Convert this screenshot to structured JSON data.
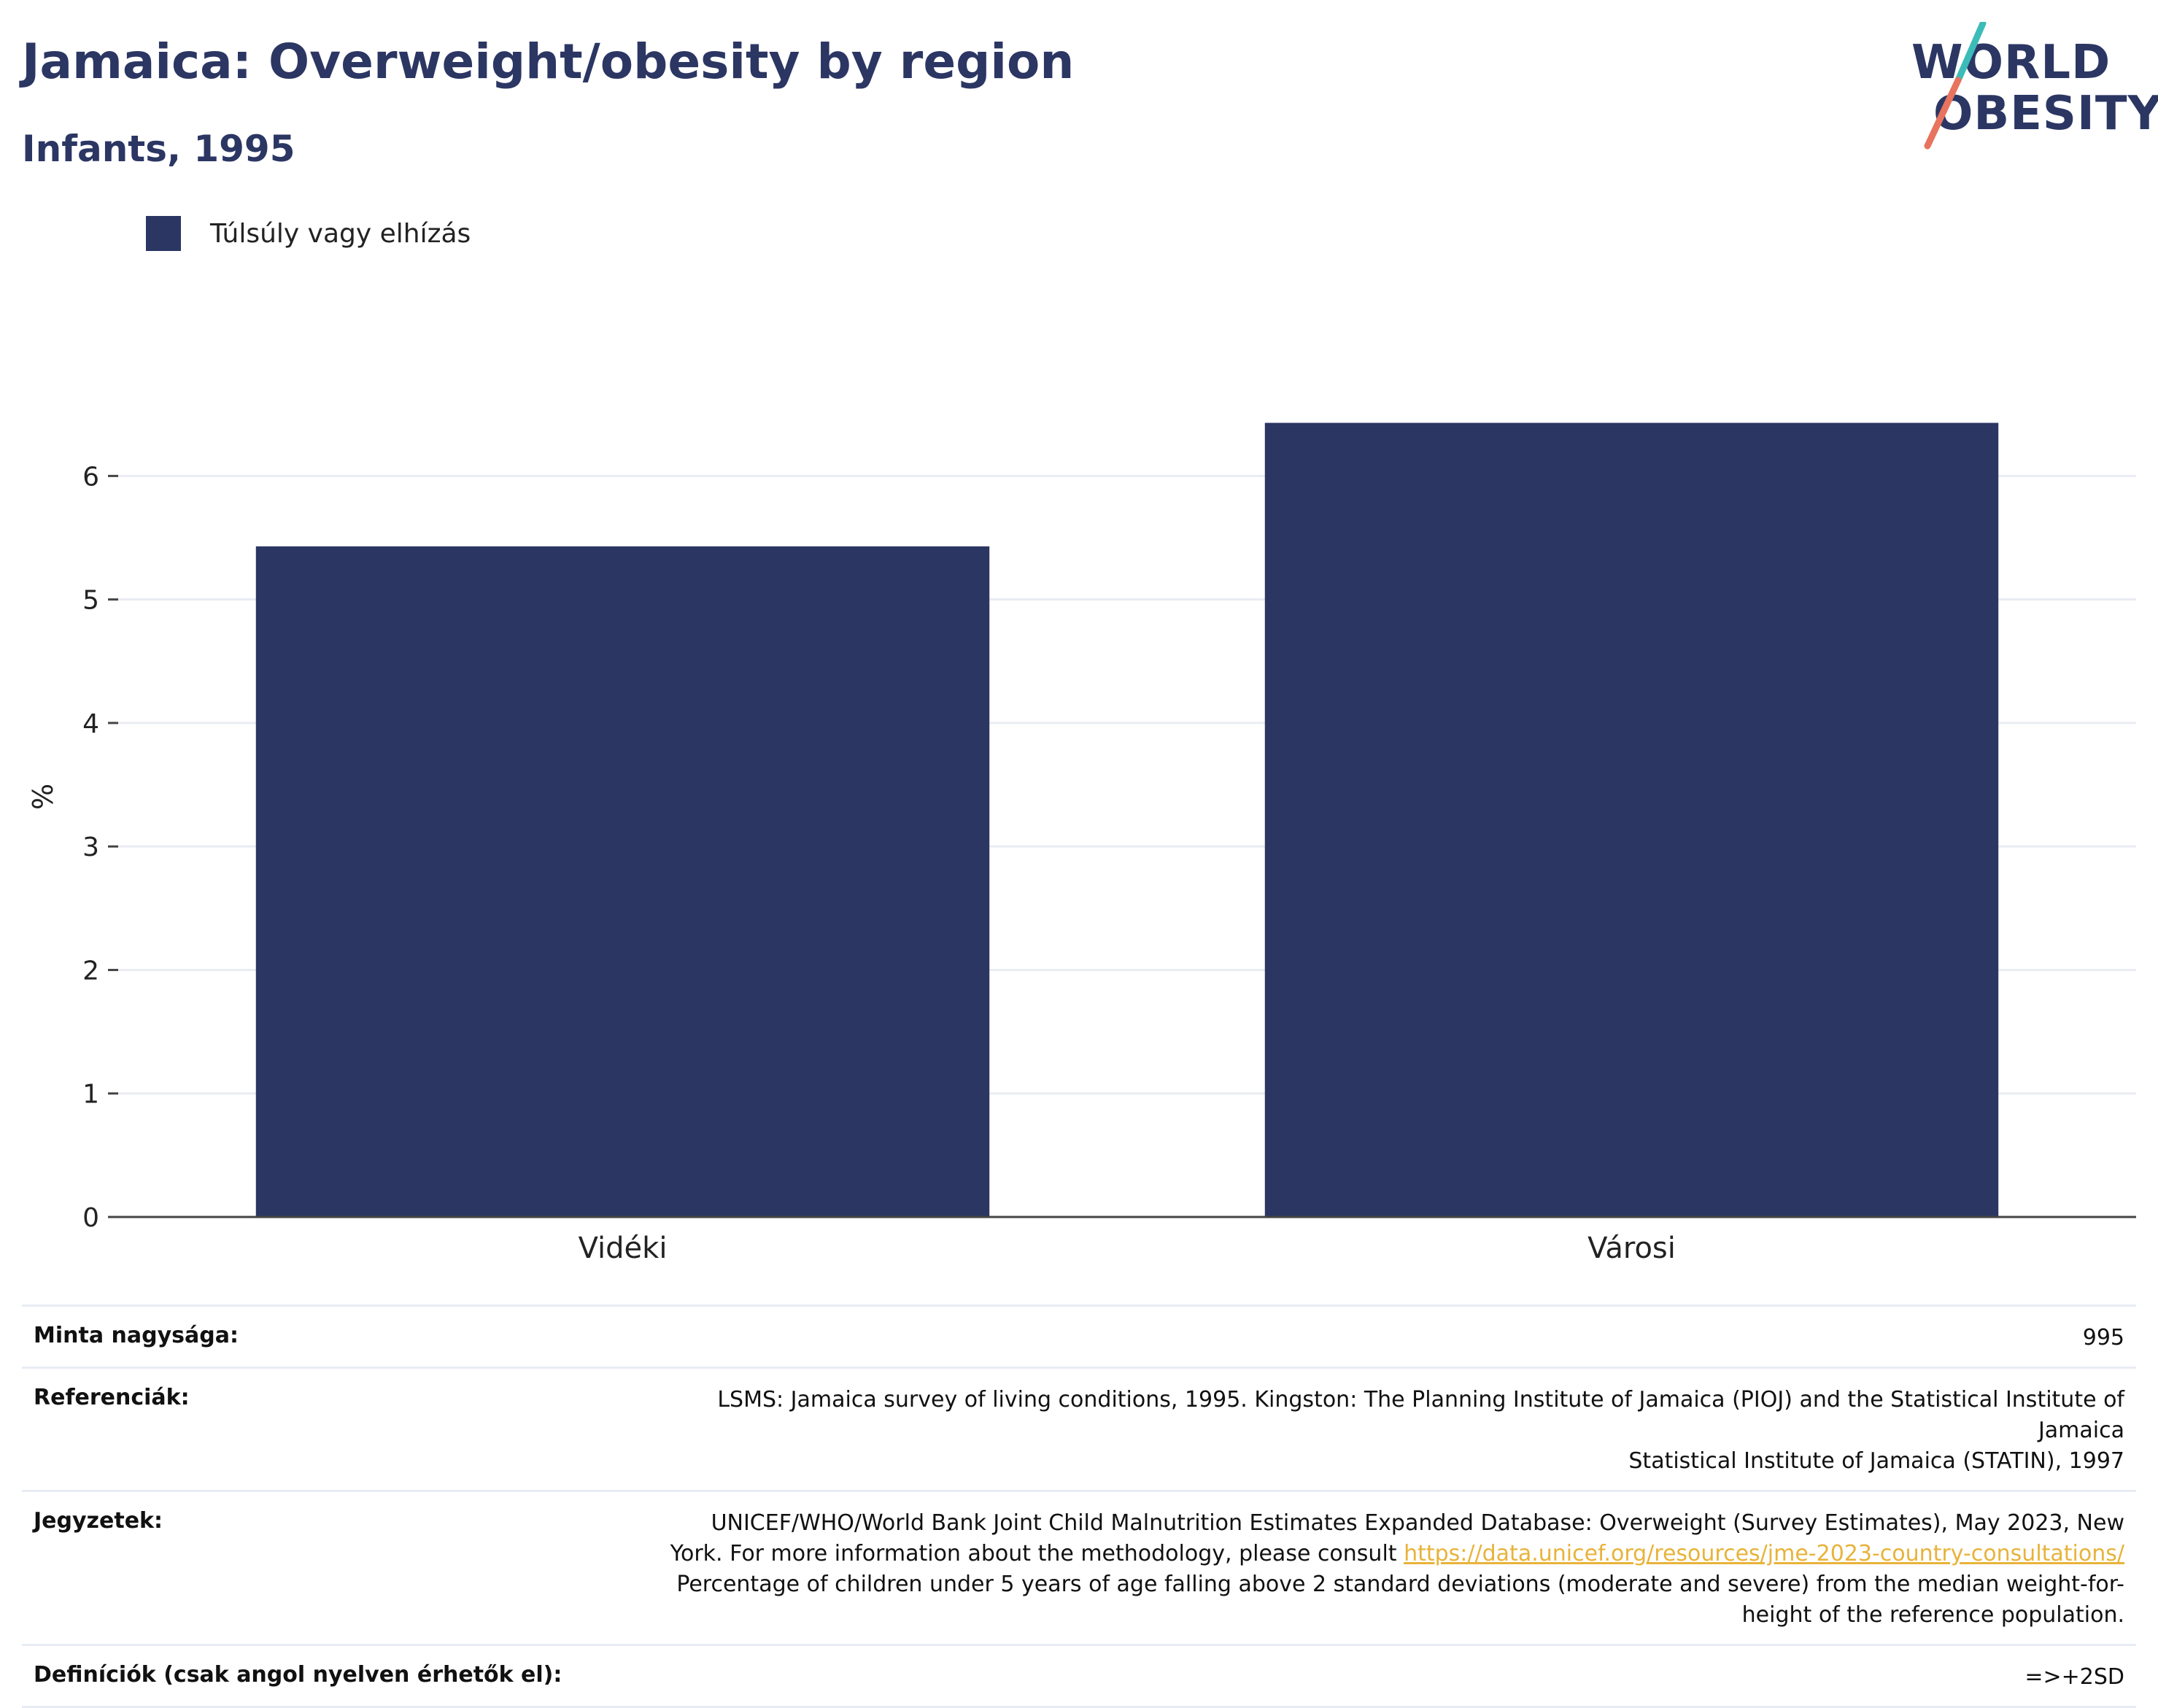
{
  "header": {
    "title": "Jamaica: Overweight/obesity by region",
    "subtitle": "Infants, 1995"
  },
  "logo": {
    "line1": "WORLD",
    "line2": "OBESITY",
    "colors": {
      "text": "#2b3663",
      "slash_top": "#3cbcb8",
      "slash_bottom": "#e8735e"
    }
  },
  "legend": {
    "label": "Túlsúly vagy elhízás",
    "color": "#2b3663"
  },
  "chart_data": {
    "type": "bar",
    "categories": [
      "Vidéki",
      "Városi"
    ],
    "series": [
      {
        "name": "Túlsúly vagy elhízás",
        "values": [
          5.43,
          6.43
        ],
        "color": "#2b3663"
      }
    ],
    "ylabel": "%",
    "xlabel": "",
    "ylim": [
      0,
      6.9
    ],
    "yticks": [
      0,
      1,
      2,
      3,
      4,
      5,
      6
    ],
    "grid": true,
    "legend_position": "top-left"
  },
  "meta": {
    "sample": {
      "label": "Minta nagysága:",
      "value": "995"
    },
    "references": {
      "label": "Referenciák:",
      "line1": "LSMS: Jamaica survey of living conditions, 1995. Kingston: The Planning Institute of Jamaica (PIOJ) and the Statistical Institute of Jamaica",
      "line2": "Statistical Institute of Jamaica (STATIN), 1997"
    },
    "notes": {
      "label": "Jegyzetek:",
      "line1": "UNICEF/WHO/World Bank Joint Child Malnutrition Estimates Expanded Database: Overweight (Survey Estimates), May 2023, New",
      "line2_prefix": "York. For more information about the methodology, please consult ",
      "link": "https://data.unicef.org/resources/jme-2023-country-consultations/",
      "line3": "Percentage of children under 5 years of age falling above 2 standard deviations (moderate and severe) from the median weight-for-",
      "line4": "height of the reference population."
    },
    "definitions": {
      "label": "Definíciók (csak angol nyelven érhetők el):",
      "value": "=>+2SD"
    }
  }
}
